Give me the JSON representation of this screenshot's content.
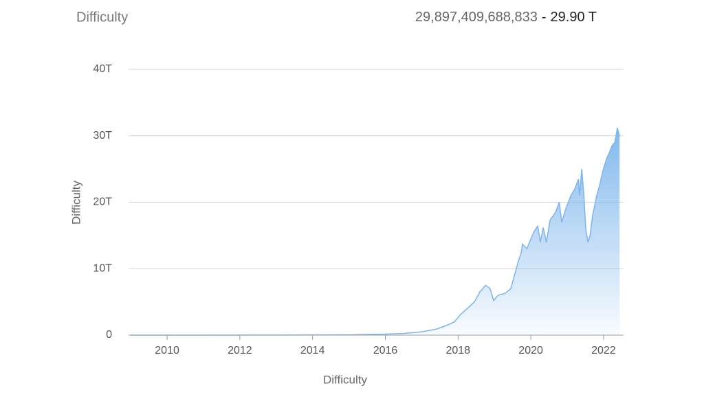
{
  "header": {
    "label": "Difficulty",
    "value": "29,897,409,688,833",
    "separator": "-",
    "short": "29.90 T"
  },
  "chart_data": {
    "type": "area",
    "x_label": "Difficulty",
    "y_label": "Difficulty",
    "color": "#7cb5ec",
    "xlim": [
      2008.94,
      2022.55
    ],
    "xticks": [
      2010,
      2012,
      2014,
      2016,
      2018,
      2020,
      2022
    ],
    "ylim": [
      0,
      40
    ],
    "yticks": [
      0,
      {
        "value": 10,
        "label": "10T"
      },
      {
        "value": 20,
        "label": "20T"
      },
      {
        "value": 30,
        "label": "30T"
      },
      {
        "value": 40,
        "label": "40T"
      }
    ],
    "grid": true,
    "x": [
      2009.0,
      2011.0,
      2013.0,
      2014.0,
      2015.0,
      2016.0,
      2016.5,
      2017.0,
      2017.4,
      2017.7,
      2017.9,
      2018.05,
      2018.25,
      2018.45,
      2018.6,
      2018.76,
      2018.88,
      2018.98,
      2019.1,
      2019.3,
      2019.45,
      2019.55,
      2019.65,
      2019.74,
      2019.77,
      2019.89,
      2020.08,
      2020.19,
      2020.26,
      2020.34,
      2020.43,
      2020.53,
      2020.68,
      2020.78,
      2020.85,
      2020.96,
      2021.1,
      2021.21,
      2021.31,
      2021.34,
      2021.4,
      2021.46,
      2021.51,
      2021.57,
      2021.63,
      2021.7,
      2021.81,
      2021.89,
      2021.97,
      2022.08,
      2022.16,
      2022.23,
      2022.31,
      2022.38,
      2022.44
    ],
    "values": [
      0,
      0.001,
      0.01,
      0.03,
      0.05,
      0.15,
      0.25,
      0.5,
      0.9,
      1.5,
      2.0,
      3.0,
      4.0,
      5.0,
      6.5,
      7.5,
      7.0,
      5.2,
      6.0,
      6.3,
      7.0,
      9.0,
      11.0,
      12.5,
      13.7,
      13.0,
      15.5,
      16.4,
      14.0,
      16.2,
      14.0,
      17.3,
      18.5,
      20.0,
      17.0,
      19.0,
      21.0,
      22.0,
      23.5,
      21.0,
      25.0,
      21.0,
      16.0,
      14.0,
      15.0,
      18.0,
      21.0,
      22.5,
      24.5,
      26.5,
      27.5,
      28.5,
      29.0,
      31.2,
      29.9
    ]
  }
}
